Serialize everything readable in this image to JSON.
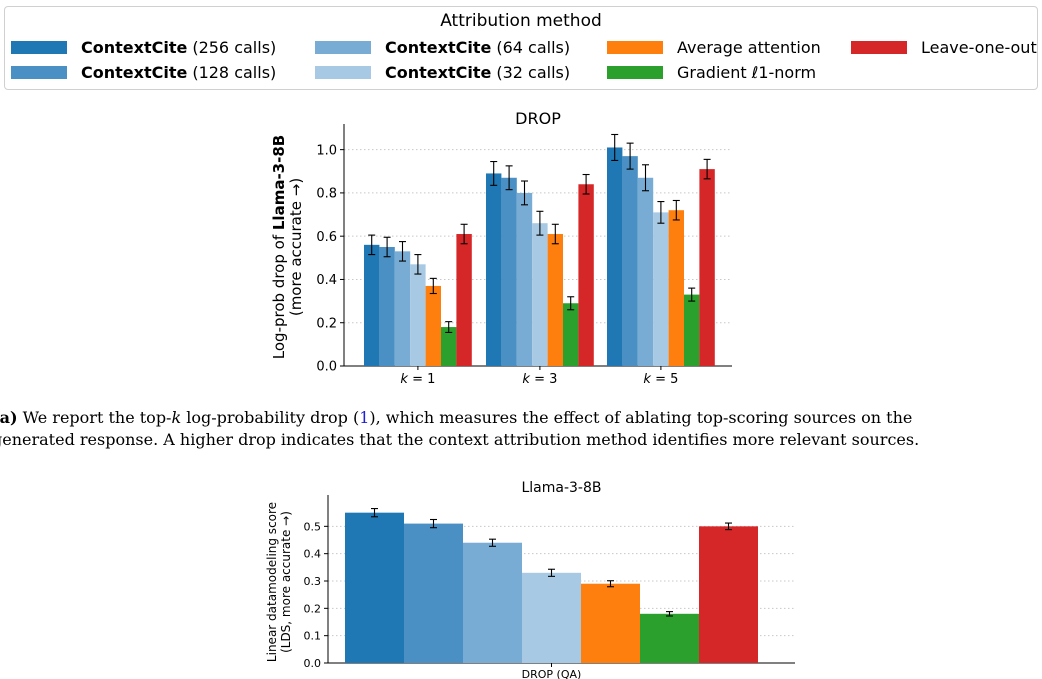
{
  "legend": {
    "title": "Attribution method",
    "items": [
      {
        "bold": "ContextCite",
        "text": "(256 calls)",
        "color": "#1f77b4"
      },
      {
        "bold": "ContextCite",
        "text": "(128 calls)",
        "color": "#4a90c4"
      },
      {
        "bold": "ContextCite",
        "text": "(64 calls)",
        "color": "#79acd4"
      },
      {
        "bold": "ContextCite",
        "text": "(32 calls)",
        "color": "#a7c9e3"
      },
      {
        "bold": "",
        "text": "Average attention",
        "color": "#ff7f0e"
      },
      {
        "bold": "",
        "text": "Gradient ℓ1-norm",
        "color": "#2ca02c"
      },
      {
        "bold": "",
        "text": "Leave-one-out",
        "color": "#d62728"
      }
    ]
  },
  "caption": {
    "label": "(a)",
    "line1_a": "We report the top-",
    "line1_k": "k",
    "line1_b": " log-probability drop (",
    "line1_ref": "1",
    "line1_c": "), which measures the effect of ablating top-scoring sources on the",
    "line2": "generated response. A higher drop indicates that the context attribution method identifies more relevant sources."
  },
  "chart_data": [
    {
      "type": "bar",
      "title": "DROP",
      "ylabel_prefix": "Log-prob drop of ",
      "ylabel_bold": "Llama-3-8B",
      "ylabel_line2": "(more accurate →)",
      "categories": [
        "k = 1",
        "k = 3",
        "k = 5"
      ],
      "yticks": [
        "0.0",
        "0.2",
        "0.4",
        "0.6",
        "0.8",
        "1.0"
      ],
      "ylim": [
        0,
        1.1
      ],
      "grid": "horizontal dotted",
      "series": [
        {
          "name": "ContextCite (256 calls)",
          "color": "#1f77b4",
          "values": [
            0.56,
            0.89,
            1.01
          ],
          "errors": [
            0.045,
            0.055,
            0.06
          ]
        },
        {
          "name": "ContextCite (128 calls)",
          "color": "#4a90c4",
          "values": [
            0.55,
            0.87,
            0.97
          ],
          "errors": [
            0.045,
            0.055,
            0.06
          ]
        },
        {
          "name": "ContextCite (64 calls)",
          "color": "#79acd4",
          "values": [
            0.53,
            0.8,
            0.87
          ],
          "errors": [
            0.045,
            0.055,
            0.06
          ]
        },
        {
          "name": "ContextCite (32 calls)",
          "color": "#a7c9e3",
          "values": [
            0.47,
            0.66,
            0.71
          ],
          "errors": [
            0.045,
            0.055,
            0.05
          ]
        },
        {
          "name": "Average attention",
          "color": "#ff7f0e",
          "values": [
            0.37,
            0.61,
            0.72
          ],
          "errors": [
            0.035,
            0.045,
            0.045
          ]
        },
        {
          "name": "Gradient ℓ1-norm",
          "color": "#2ca02c",
          "values": [
            0.18,
            0.29,
            0.33
          ],
          "errors": [
            0.025,
            0.03,
            0.03
          ]
        },
        {
          "name": "Leave-one-out",
          "color": "#d62728",
          "values": [
            0.61,
            0.84,
            0.91
          ],
          "errors": [
            0.045,
            0.045,
            0.045
          ]
        }
      ]
    },
    {
      "type": "bar",
      "title": "Llama-3-8B",
      "ylabel_line1": "Linear datamodeling score",
      "ylabel_line2": "(LDS, more accurate →)",
      "categories": [
        "DROP (QA)"
      ],
      "yticks": [
        "0.0",
        "0.1",
        "0.2",
        "0.3",
        "0.4",
        "0.5"
      ],
      "ylim": [
        0,
        0.6
      ],
      "grid": "horizontal dotted",
      "series": [
        {
          "name": "ContextCite (256 calls)",
          "color": "#1f77b4",
          "values": [
            0.55
          ],
          "errors": [
            0.015
          ]
        },
        {
          "name": "ContextCite (128 calls)",
          "color": "#4a90c4",
          "values": [
            0.51
          ],
          "errors": [
            0.015
          ]
        },
        {
          "name": "ContextCite (64 calls)",
          "color": "#79acd4",
          "values": [
            0.44
          ],
          "errors": [
            0.013
          ]
        },
        {
          "name": "ContextCite (32 calls)",
          "color": "#a7c9e3",
          "values": [
            0.33
          ],
          "errors": [
            0.013
          ]
        },
        {
          "name": "Average attention",
          "color": "#ff7f0e",
          "values": [
            0.29
          ],
          "errors": [
            0.011
          ]
        },
        {
          "name": "Gradient ℓ1-norm",
          "color": "#2ca02c",
          "values": [
            0.18
          ],
          "errors": [
            0.008
          ]
        },
        {
          "name": "Leave-one-out",
          "color": "#d62728",
          "values": [
            0.5
          ],
          "errors": [
            0.012
          ]
        }
      ]
    }
  ]
}
